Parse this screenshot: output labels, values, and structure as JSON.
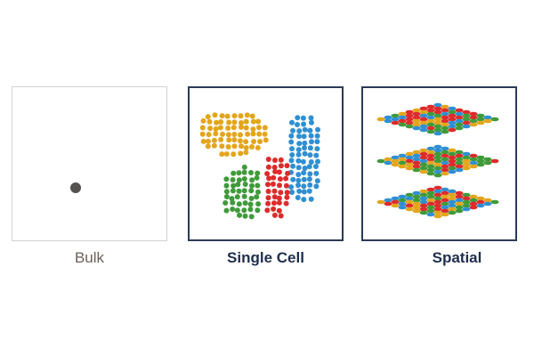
{
  "panels": [
    {
      "id": "bulk",
      "label": "Bulk"
    },
    {
      "id": "single",
      "label": "Single Cell"
    },
    {
      "id": "spatial",
      "label": "Spatial"
    }
  ],
  "colors": {
    "bulk_dot": "#555150",
    "cluster_orange": "#e3a51b",
    "cluster_blue": "#2f8fd2",
    "cluster_green": "#3f9a3a",
    "cluster_red": "#dd2b2b",
    "frame_dark": "#2b3a55",
    "frame_light": "#d2d2d2"
  },
  "icons": {
    "bulk": "single-dot-icon",
    "single": "cell-clusters-icon",
    "spatial": "stacked-grid-layers-icon"
  }
}
